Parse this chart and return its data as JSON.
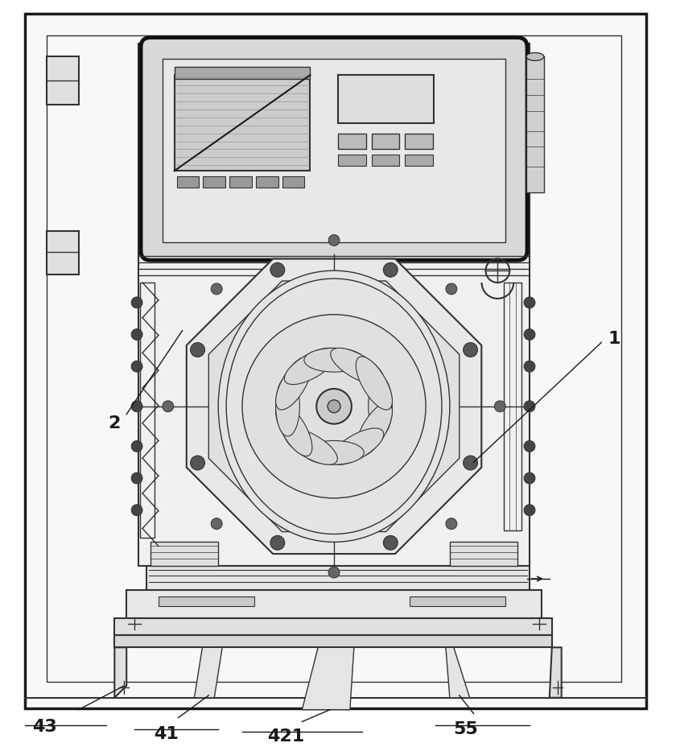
{
  "bg_color": "#ffffff",
  "lc": "#1a1a1a",
  "lc2": "#333333",
  "lc3": "#555555",
  "fig_width": 8.4,
  "fig_height": 9.29,
  "label_fontsize": 15
}
